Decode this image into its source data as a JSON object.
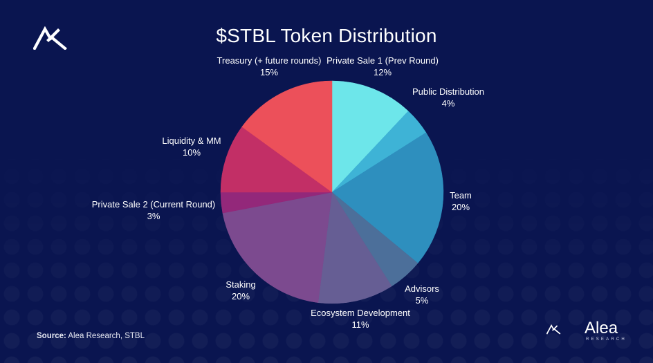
{
  "colors": {
    "background": "#0a1550",
    "slice_colors": [
      "#6de6ea",
      "#3eb3d6",
      "#2e8fbe",
      "#4c6f9a",
      "#665e94",
      "#7c4a8f",
      "#93287a",
      "#c22f66",
      "#ec505a"
    ]
  },
  "brand": {
    "name": "Alea",
    "subtitle": "RESEARCH",
    "icon": "alea-logo-icon"
  },
  "source": {
    "prefix": "Source:",
    "text": "Alea Research, STBL"
  },
  "chart_data": {
    "type": "pie",
    "title": "$STBL Token Distribution",
    "slices": [
      {
        "label": "Private Sale 1 (Prev Round)",
        "value": 12,
        "value_label": "12%"
      },
      {
        "label": "Public Distribution",
        "value": 4,
        "value_label": "4%"
      },
      {
        "label": "Team",
        "value": 20,
        "value_label": "20%"
      },
      {
        "label": "Advisors",
        "value": 5,
        "value_label": "5%"
      },
      {
        "label": "Ecosystem Development",
        "value": 11,
        "value_label": "11%"
      },
      {
        "label": "Staking",
        "value": 20,
        "value_label": "20%"
      },
      {
        "label": "Private Sale 2 (Current Round)",
        "value": 3,
        "value_label": "3%"
      },
      {
        "label": "Liquidity & MM",
        "value": 10,
        "value_label": "10%"
      },
      {
        "label": "Treasury (+ future rounds)",
        "value": 15,
        "value_label": "15%"
      }
    ],
    "start_angle": "12 o'clock",
    "direction": "clockwise",
    "legend": "none"
  }
}
